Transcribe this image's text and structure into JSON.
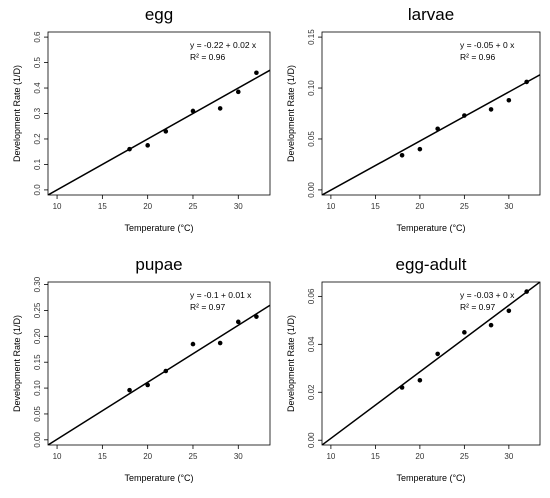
{
  "chart_data": [
    {
      "type": "scatter",
      "title": "egg",
      "xlabel": "Temperature (°C)",
      "ylabel": "Development Rate (1/D)",
      "xlim": [
        9,
        33.5
      ],
      "ylim": [
        -0.02,
        0.62
      ],
      "xticks": [
        "10",
        "15",
        "20",
        "25",
        "30"
      ],
      "yticks": [
        "0.0",
        "0.1",
        "0.2",
        "0.3",
        "0.4",
        "0.5",
        "0.6"
      ],
      "x": [
        18,
        20,
        22,
        25,
        28,
        30,
        32
      ],
      "y": [
        0.16,
        0.175,
        0.23,
        0.31,
        0.32,
        0.385,
        0.46
      ],
      "fit": {
        "x1": 9,
        "y1": -0.02,
        "x2": 33.5,
        "y2": 0.47
      },
      "equation": "y = -0.22 + 0.02 x",
      "r2": "R² = 0.96"
    },
    {
      "type": "scatter",
      "title": "larvae",
      "xlabel": "Temperature (°C)",
      "ylabel": "Development Rate (1/D)",
      "xlim": [
        9,
        33.5
      ],
      "ylim": [
        -0.005,
        0.155
      ],
      "xticks": [
        "10",
        "15",
        "20",
        "25",
        "30"
      ],
      "yticks": [
        "0.00",
        "0.05",
        "0.10",
        "0.15"
      ],
      "x": [
        18,
        20,
        22,
        25,
        28,
        30,
        32
      ],
      "y": [
        0.034,
        0.04,
        0.06,
        0.073,
        0.079,
        0.088,
        0.106
      ],
      "fit": {
        "x1": 9,
        "y1": -0.005,
        "x2": 33.5,
        "y2": 0.113
      },
      "equation": "y = -0.05 + 0 x",
      "r2": "R² = 0.96"
    },
    {
      "type": "scatter",
      "title": "pupae",
      "xlabel": "Temperature (°C)",
      "ylabel": "Development Rate (1/D)",
      "xlim": [
        9,
        33.5
      ],
      "ylim": [
        -0.01,
        0.305
      ],
      "xticks": [
        "10",
        "15",
        "20",
        "25",
        "30"
      ],
      "yticks": [
        "0.00",
        "0.05",
        "0.10",
        "0.15",
        "0.20",
        "0.25",
        "0.30"
      ],
      "x": [
        18,
        20,
        22,
        25,
        28,
        30,
        32
      ],
      "y": [
        0.096,
        0.106,
        0.133,
        0.185,
        0.187,
        0.228,
        0.238
      ],
      "fit": {
        "x1": 9,
        "y1": -0.01,
        "x2": 33.5,
        "y2": 0.26
      },
      "equation": "y = -0.1 + 0.01 x",
      "r2": "R² = 0.97"
    },
    {
      "type": "scatter",
      "title": "egg-adult",
      "xlabel": "Temperature (°C)",
      "ylabel": "Development Rate (1/D)",
      "xlim": [
        9,
        33.5
      ],
      "ylim": [
        -0.002,
        0.066
      ],
      "xticks": [
        "10",
        "15",
        "20",
        "25",
        "30"
      ],
      "yticks": [
        "0.00",
        "0.02",
        "0.04",
        "0.06"
      ],
      "x": [
        18,
        20,
        22,
        25,
        28,
        30,
        32
      ],
      "y": [
        0.022,
        0.025,
        0.036,
        0.045,
        0.048,
        0.054,
        0.062
      ],
      "fit": {
        "x1": 9,
        "y1": -0.002,
        "x2": 33.5,
        "y2": 0.066
      },
      "equation": "y = -0.03 + 0 x",
      "r2": "R² = 0.97"
    }
  ]
}
